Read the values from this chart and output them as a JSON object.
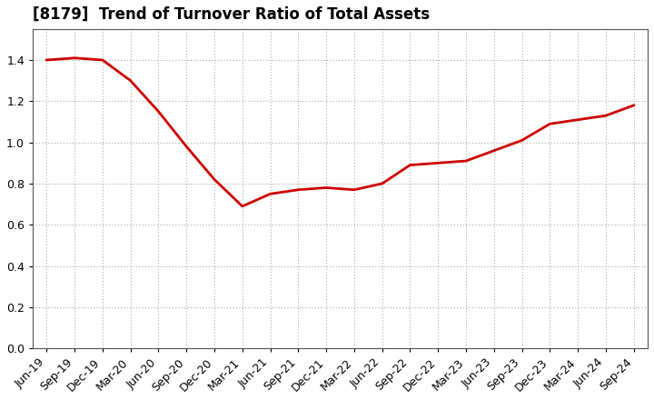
{
  "title": "[8179]  Trend of Turnover Ratio of Total Assets",
  "line_color": "#cc0000",
  "line_width": 2.0,
  "background_color": "#ffffff",
  "grid_color": "#aaaaaa",
  "ylim": [
    0.0,
    1.55
  ],
  "yticks": [
    0.0,
    0.2,
    0.4,
    0.6,
    0.8,
    1.0,
    1.2,
    1.4
  ],
  "x_labels": [
    "Jun-19",
    "Sep-19",
    "Dec-19",
    "Mar-20",
    "Jun-20",
    "Sep-20",
    "Dec-20",
    "Mar-21",
    "Jun-21",
    "Sep-21",
    "Dec-21",
    "Mar-22",
    "Jun-22",
    "Sep-22",
    "Dec-22",
    "Mar-23",
    "Jun-23",
    "Sep-23",
    "Dec-23",
    "Mar-24",
    "Jun-24",
    "Sep-24"
  ],
  "values": [
    1.4,
    1.41,
    1.4,
    1.3,
    1.15,
    0.98,
    0.82,
    0.69,
    0.75,
    0.77,
    0.78,
    0.77,
    0.8,
    0.89,
    0.9,
    0.91,
    0.96,
    1.01,
    1.09,
    1.11,
    1.13,
    1.18
  ],
  "title_fontsize": 12,
  "tick_fontsize": 9
}
